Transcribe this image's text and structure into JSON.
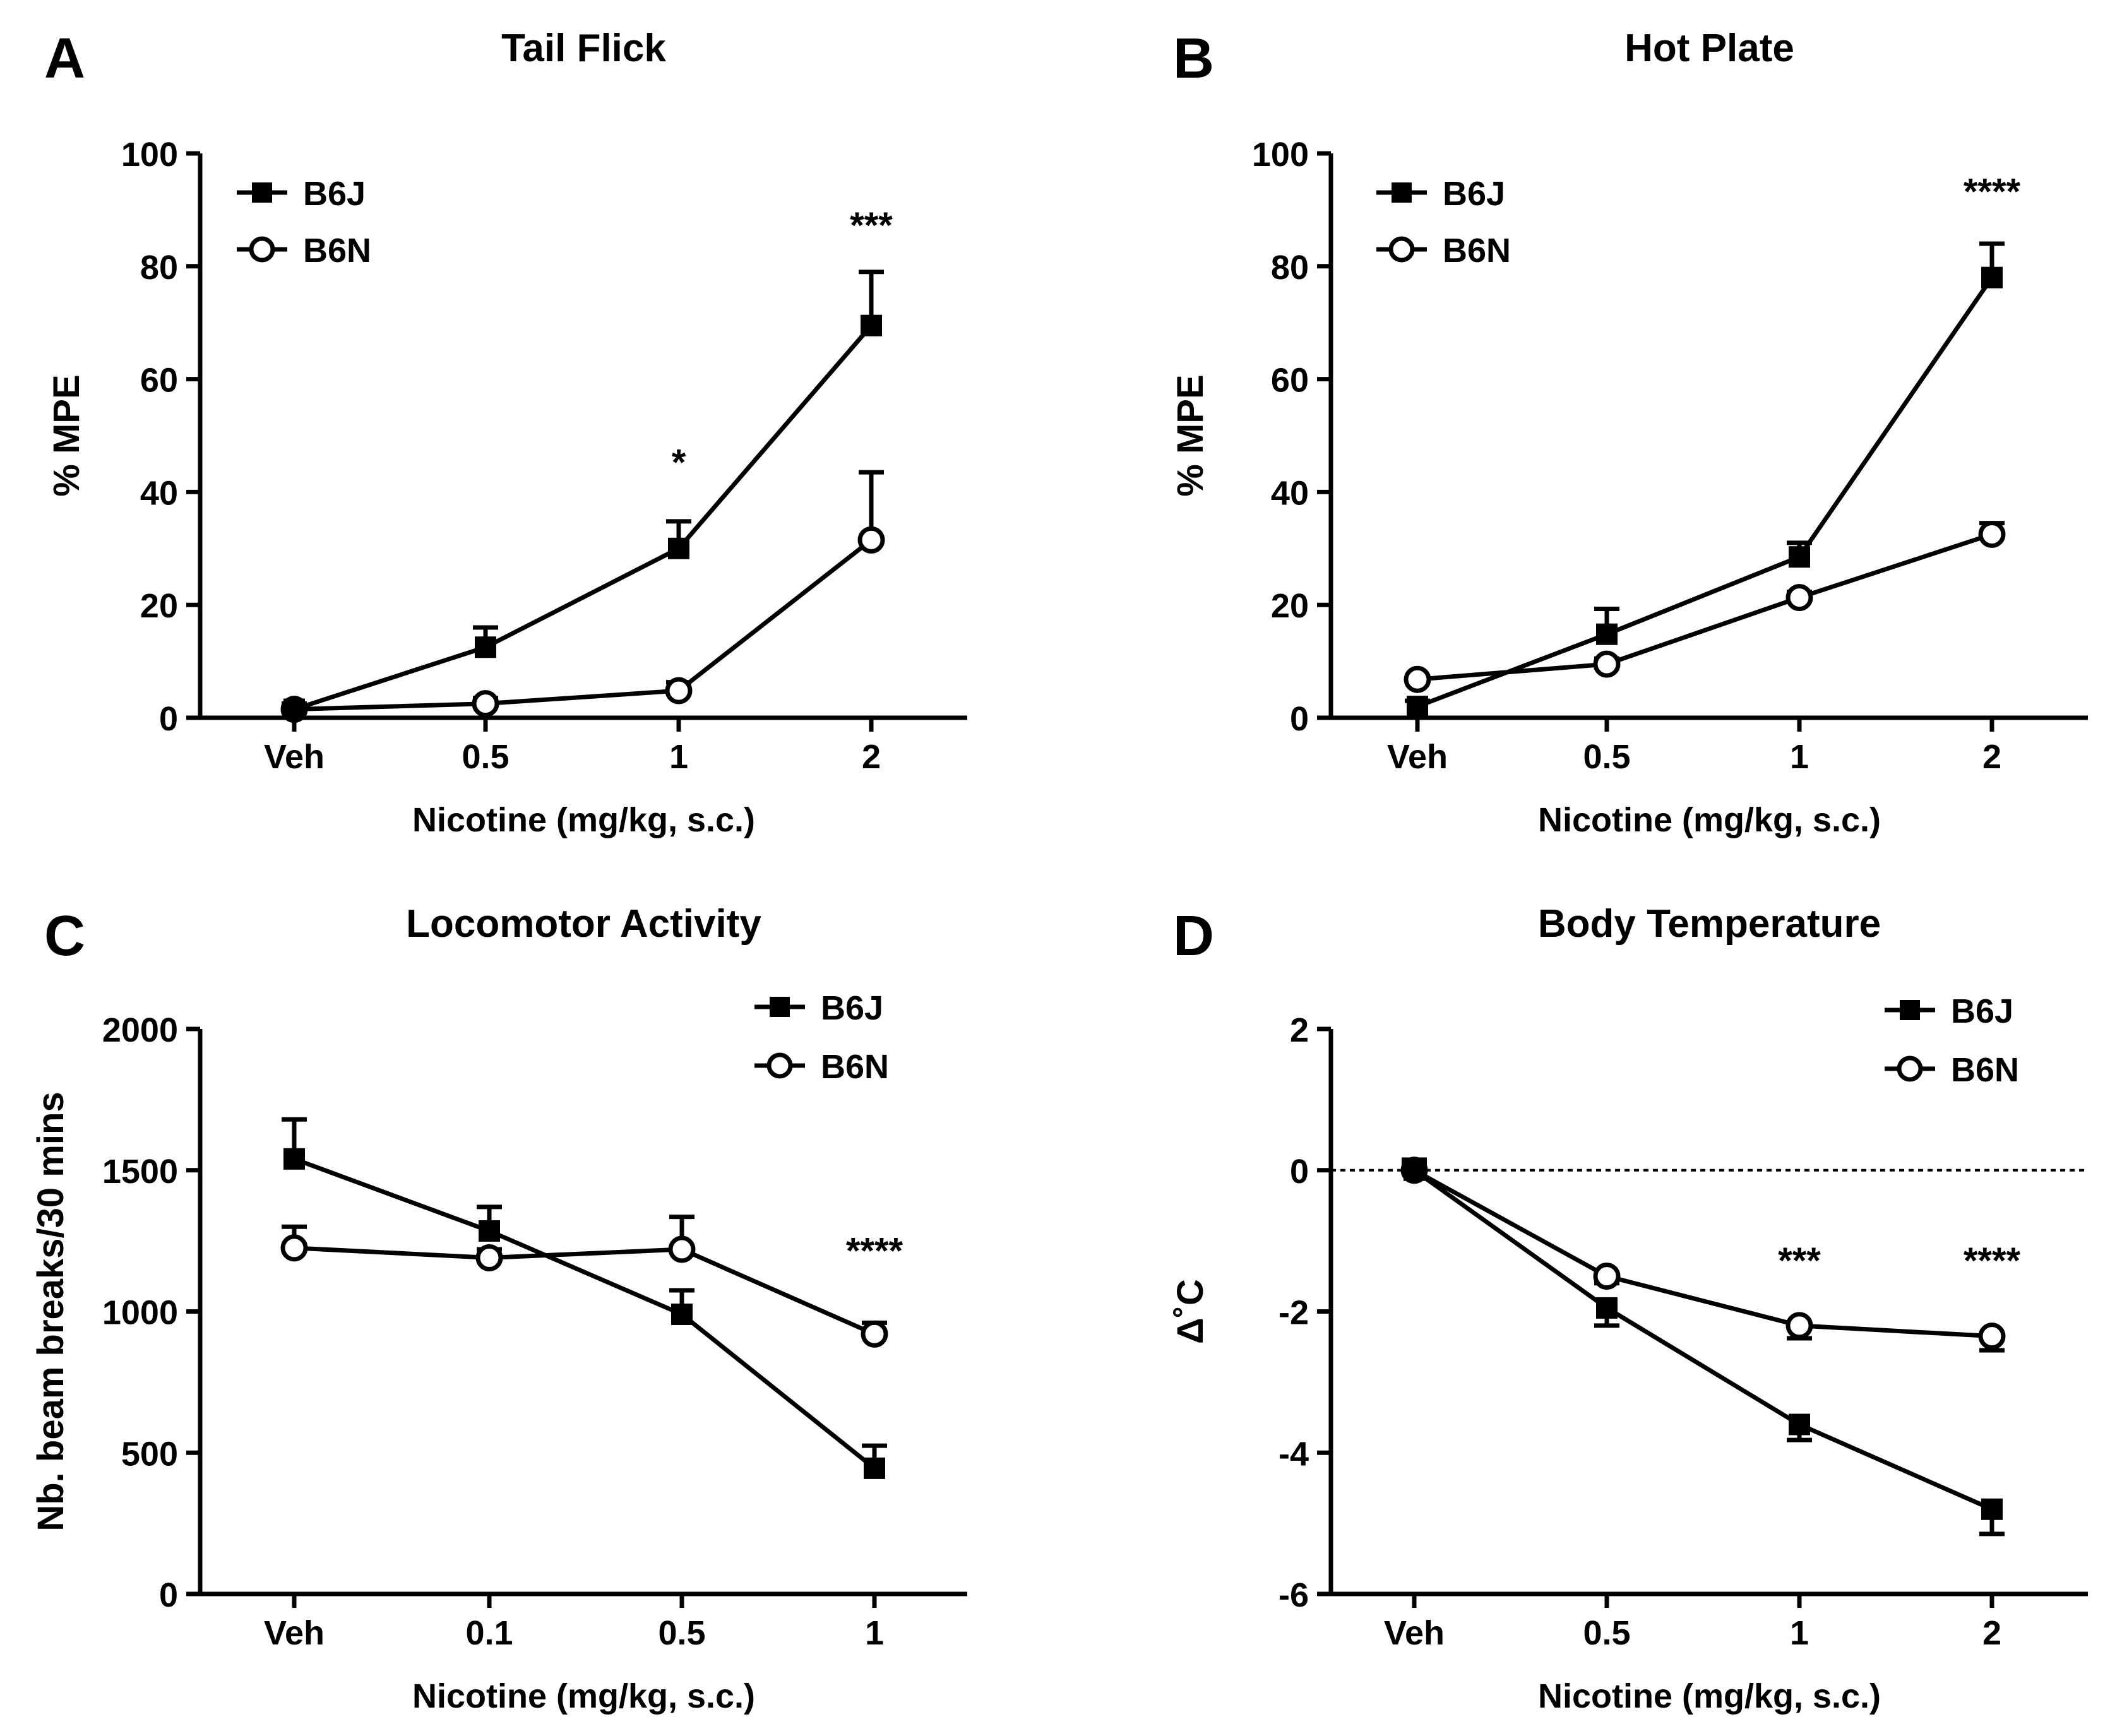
{
  "chart_data": [
    {
      "panel_label": "A",
      "type": "line",
      "title": "Tail Flick",
      "xlabel": "Nicotine (mg/kg, s.c.)",
      "ylabel": "% MPE",
      "categories": [
        "Veh",
        "0.5",
        "1",
        "2"
      ],
      "ylim": [
        0,
        100
      ],
      "yticks": [
        0,
        20,
        40,
        60,
        80,
        100
      ],
      "legend_position": "top-left",
      "series": [
        {
          "name": "B6J",
          "marker": "filled-square",
          "values": [
            1.5,
            12.5,
            30,
            69.5
          ],
          "errors": [
            1,
            3.5,
            4.8,
            9.5
          ]
        },
        {
          "name": "B6N",
          "marker": "open-circle",
          "values": [
            1.5,
            2.5,
            4.8,
            31.5
          ],
          "errors": [
            0.8,
            1,
            1.5,
            12
          ]
        }
      ],
      "annotations": [
        {
          "category": "1",
          "value": 45,
          "text": "*"
        },
        {
          "category": "2",
          "value": 87,
          "text": "***"
        }
      ]
    },
    {
      "panel_label": "B",
      "type": "line",
      "title": "Hot Plate",
      "xlabel": "Nicotine (mg/kg, s.c.)",
      "ylabel": "% MPE",
      "categories": [
        "Veh",
        "0.5",
        "1",
        "2"
      ],
      "ylim": [
        0,
        100
      ],
      "yticks": [
        0,
        20,
        40,
        60,
        80,
        100
      ],
      "legend_position": "top-left",
      "series": [
        {
          "name": "B6J",
          "marker": "filled-square",
          "values": [
            2,
            14.8,
            28.5,
            78
          ],
          "errors": [
            1,
            4.5,
            2.5,
            6
          ]
        },
        {
          "name": "B6N",
          "marker": "open-circle",
          "values": [
            6.8,
            9.5,
            21.3,
            32.5
          ],
          "errors": [
            0.5,
            1,
            1,
            2
          ]
        }
      ],
      "annotations": [
        {
          "category": "2",
          "value": 93,
          "text": "****"
        }
      ]
    },
    {
      "panel_label": "C",
      "type": "line",
      "title": "Locomotor Activity",
      "xlabel": "Nicotine (mg/kg, s.c.)",
      "ylabel": "Nb. beam breaks/30 mins",
      "categories": [
        "Veh",
        "0.1",
        "0.5",
        "1"
      ],
      "ylim": [
        0,
        2000
      ],
      "yticks": [
        0,
        500,
        1000,
        1500,
        2000
      ],
      "legend_position": "top-right",
      "series": [
        {
          "name": "B6J",
          "marker": "filled-square",
          "values": [
            1540,
            1285,
            990,
            445
          ],
          "errors": [
            140,
            85,
            85,
            80
          ]
        },
        {
          "name": "B6N",
          "marker": "open-circle",
          "values": [
            1225,
            1190,
            1220,
            920
          ],
          "errors": [
            75,
            30,
            115,
            40
          ]
        }
      ],
      "annotations": [
        {
          "category": "1",
          "value": 1210,
          "text": "****"
        }
      ]
    },
    {
      "panel_label": "D",
      "type": "line",
      "title": "Body Temperature",
      "xlabel": "Nicotine (mg/kg, s.c.)",
      "ylabel": "Δ˚C",
      "categories": [
        "Veh",
        "0.5",
        "1",
        "2"
      ],
      "ylim": [
        -6,
        2
      ],
      "yticks": [
        -6,
        -4,
        -2,
        0,
        2
      ],
      "reference_line": 0,
      "legend_position": "top-right",
      "series": [
        {
          "name": "B6J",
          "marker": "filled-square",
          "values": [
            0,
            -1.95,
            -3.6,
            -4.8
          ],
          "errors": [
            0.15,
            0.25,
            0.22,
            0.35
          ]
        },
        {
          "name": "B6N",
          "marker": "open-circle",
          "values": [
            0,
            -1.5,
            -2.2,
            -2.35
          ],
          "errors": [
            0.1,
            0.1,
            0.18,
            0.2
          ]
        }
      ],
      "annotations": [
        {
          "category": "1",
          "value": -1.3,
          "text": "***"
        },
        {
          "category": "2",
          "value": -1.3,
          "text": "****"
        }
      ]
    }
  ]
}
